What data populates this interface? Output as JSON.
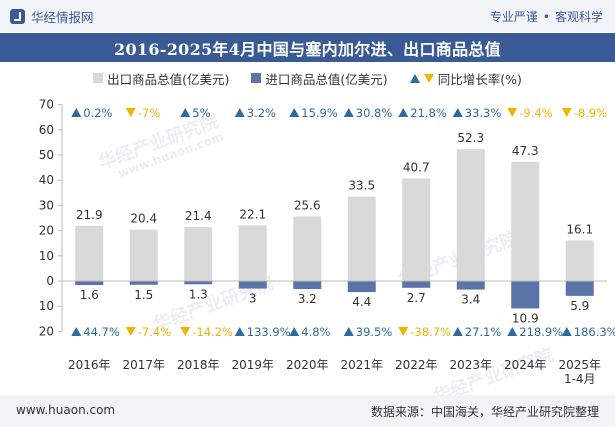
{
  "header": {
    "brand": "华经情报网",
    "slogan_left": "专业严谨",
    "slogan_dot": "•",
    "slogan_right": "客观科学"
  },
  "title": "2016-2025年4月中国与塞内加尔进、出口商品总值",
  "legend": {
    "export_label": "出口商品总值(亿美元)",
    "import_label": "进口商品总值(亿美元)",
    "yoy_label": "同比增长率(%)"
  },
  "colors": {
    "export_bar": "#d9d9d9",
    "import_bar": "#5b74a7",
    "up": "#2e6a9b",
    "down": "#f0b400",
    "title_bg": "#3a5a96"
  },
  "watermark": {
    "cn": "华经产业研究院",
    "url": "www.huaon.com"
  },
  "footer": {
    "url": "www.huaon.com",
    "source": "数据来源：中国海关，华经产业研究院整理"
  },
  "chart_data": {
    "type": "bar",
    "categories": [
      "2016年",
      "2017年",
      "2018年",
      "2019年",
      "2020年",
      "2021年",
      "2022年",
      "2023年",
      "2024年",
      "2025年\n1-4月"
    ],
    "ylim": [
      -20,
      70
    ],
    "yticks": [
      -20,
      -10,
      0,
      10,
      20,
      30,
      40,
      50,
      60,
      70
    ],
    "ytick_labels": [
      "20",
      "10",
      "0",
      "10",
      "20",
      "30",
      "40",
      "50",
      "60",
      "70"
    ],
    "series": [
      {
        "name": "出口商品总值(亿美元)",
        "values": [
          21.9,
          20.4,
          21.4,
          22.1,
          25.6,
          33.5,
          40.7,
          52.3,
          47.3,
          16.1
        ],
        "labels": [
          "21.9",
          "20.4",
          "21.4",
          "22.1",
          "25.6",
          "33.5",
          "40.7",
          "52.3",
          "47.3",
          "16.1"
        ],
        "yoy": [
          "0.2%",
          "-7%",
          "5%",
          "3.2%",
          "15.9%",
          "30.8%",
          "21.8%",
          "33.3%",
          "-9.4%",
          "-8.9%"
        ],
        "yoy_dir": [
          "up",
          "down",
          "up",
          "up",
          "up",
          "up",
          "up",
          "up",
          "down",
          "down"
        ]
      },
      {
        "name": "进口商品总值(亿美元)",
        "values": [
          1.6,
          1.5,
          1.3,
          3,
          3.2,
          4.4,
          2.7,
          3.4,
          10.9,
          5.9
        ],
        "labels": [
          "1.6",
          "1.5",
          "1.3",
          "3",
          "3.2",
          "4.4",
          "2.7",
          "3.4",
          "10.9",
          "5.9"
        ],
        "yoy": [
          "44.7%",
          "-7.4%",
          "-14.2%",
          "133.9%",
          "4.8%",
          "39.5%",
          "-38.7%",
          "27.1%",
          "218.9%",
          "186.3%"
        ],
        "yoy_dir": [
          "up",
          "down",
          "down",
          "up",
          "up",
          "up",
          "down",
          "up",
          "up",
          "up"
        ]
      }
    ]
  }
}
